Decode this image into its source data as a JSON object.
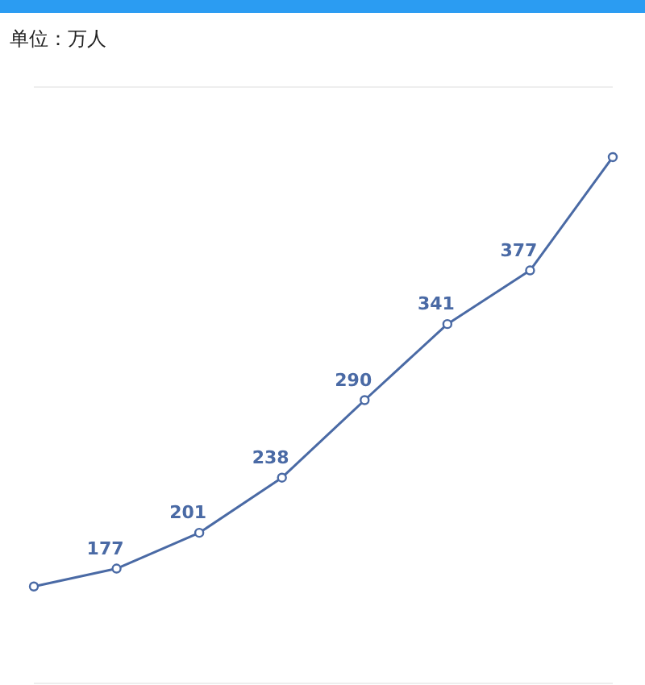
{
  "chart_data": {
    "type": "line",
    "title": "单位：万人",
    "categories": [
      null,
      null,
      null,
      null,
      null,
      null,
      null,
      null
    ],
    "series": [
      {
        "color": "#4a6aa5",
        "values": [
          165,
          177,
          201,
          238,
          290,
          341,
          377,
          453
        ],
        "value_labels": [
          null,
          "177",
          "201",
          "238",
          "290",
          "341",
          "377",
          null
        ]
      }
    ],
    "ylim": [
      100,
      500
    ],
    "grid": "y",
    "marker": "circle",
    "line_style": "solid"
  }
}
